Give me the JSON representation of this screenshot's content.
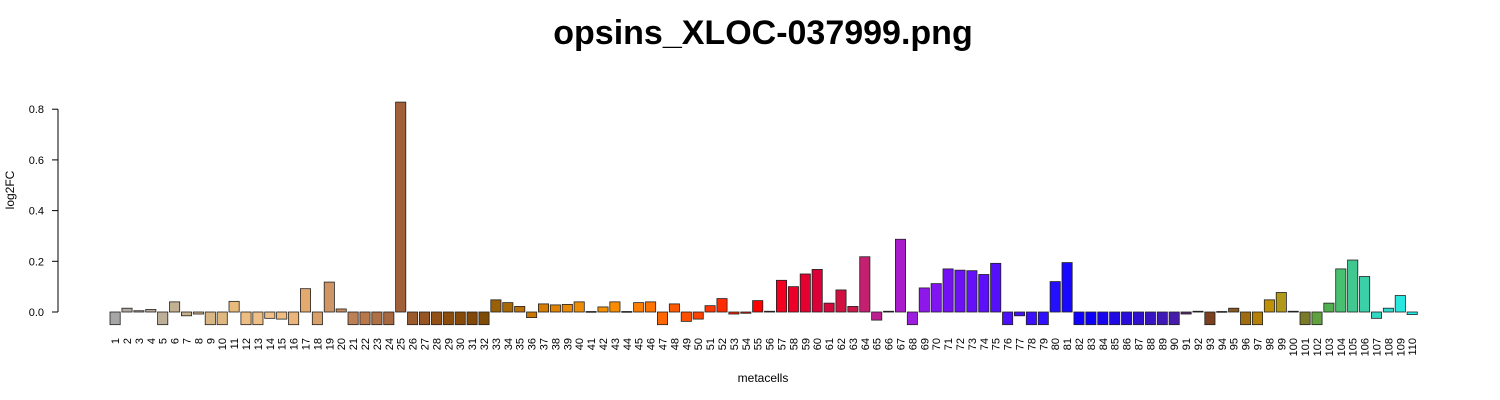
{
  "chart_data": {
    "type": "bar",
    "title": "opsins_XLOC-037999.png",
    "xlabel": "metacells",
    "ylabel": "log2FC",
    "ylim": [
      -0.05,
      0.83
    ],
    "yticks": [
      0.0,
      0.2,
      0.4,
      0.6,
      0.8
    ],
    "ytick_labels": [
      "0.0",
      "0.2",
      "0.4",
      "0.6",
      "0.8"
    ],
    "grid": false,
    "categories": [
      "1",
      "2",
      "3",
      "4",
      "5",
      "6",
      "7",
      "8",
      "9",
      "10",
      "11",
      "12",
      "13",
      "14",
      "15",
      "16",
      "17",
      "18",
      "19",
      "20",
      "21",
      "22",
      "23",
      "24",
      "25",
      "26",
      "27",
      "28",
      "29",
      "30",
      "31",
      "32",
      "33",
      "34",
      "35",
      "36",
      "37",
      "38",
      "39",
      "40",
      "41",
      "42",
      "43",
      "44",
      "45",
      "46",
      "47",
      "48",
      "49",
      "50",
      "51",
      "52",
      "53",
      "54",
      "55",
      "56",
      "57",
      "58",
      "59",
      "60",
      "61",
      "62",
      "63",
      "64",
      "65",
      "66",
      "67",
      "68",
      "69",
      "70",
      "71",
      "72",
      "73",
      "74",
      "75",
      "76",
      "77",
      "78",
      "79",
      "80",
      "81",
      "82",
      "83",
      "84",
      "85",
      "86",
      "87",
      "88",
      "89",
      "90",
      "91",
      "92",
      "93",
      "94",
      "95",
      "96",
      "97",
      "98",
      "99",
      "100",
      "101",
      "102",
      "103",
      "104",
      "105",
      "106",
      "107",
      "108",
      "109",
      "110"
    ],
    "values": [
      -0.05,
      0.015,
      0.005,
      0.01,
      -0.05,
      0.04,
      -0.015,
      -0.008,
      -0.05,
      -0.05,
      0.042,
      -0.05,
      -0.05,
      -0.025,
      -0.028,
      -0.05,
      0.092,
      -0.05,
      0.118,
      0.012,
      -0.05,
      -0.05,
      -0.05,
      -0.05,
      0.828,
      -0.05,
      -0.05,
      -0.05,
      -0.05,
      -0.05,
      -0.05,
      -0.05,
      0.048,
      0.037,
      0.022,
      -0.022,
      0.032,
      0.028,
      0.03,
      0.04,
      0.002,
      0.02,
      0.04,
      0.002,
      0.037,
      0.04,
      -0.05,
      0.032,
      -0.037,
      -0.028,
      0.025,
      0.053,
      -0.008,
      -0.005,
      0.045,
      0.003,
      0.125,
      0.1,
      0.15,
      0.168,
      0.035,
      0.087,
      0.022,
      0.218,
      -0.032,
      0.003,
      0.287,
      -0.05,
      0.095,
      0.112,
      0.17,
      0.165,
      0.163,
      0.148,
      0.192,
      -0.05,
      -0.015,
      -0.05,
      -0.05,
      0.12,
      0.195,
      -0.05,
      -0.05,
      -0.05,
      -0.05,
      -0.05,
      -0.05,
      -0.05,
      -0.05,
      -0.05,
      -0.008,
      0.003,
      -0.05,
      0.002,
      0.015,
      -0.05,
      -0.05,
      0.048,
      0.077,
      0.003,
      -0.05,
      -0.05,
      0.035,
      0.17,
      0.205,
      0.14,
      -0.025,
      0.015,
      0.065,
      -0.01
    ],
    "colors": [
      "#a6a6a6",
      "#b0aaa0",
      "#b3ab9e",
      "#b8ac9a",
      "#bcae97",
      "#c2b092",
      "#c8b28d",
      "#d0b488",
      "#d8b683",
      "#e0b77f",
      "#e8ba7c",
      "#ecbc80",
      "#efbf86",
      "#f0c08a",
      "#efbd84",
      "#eab47a",
      "#e3aa70",
      "#daa06a",
      "#d09565",
      "#c68a5e",
      "#bd8055",
      "#b8784c",
      "#b07045",
      "#a8683f",
      "#a0603a",
      "#9a5a2c",
      "#965522",
      "#925015",
      "#8c4c0b",
      "#874908",
      "#824808",
      "#7f4c08",
      "#9a6007",
      "#a86806",
      "#b87006",
      "#c87606",
      "#d57c06",
      "#e08206",
      "#e88806",
      "#ee8c05",
      "#f49004",
      "#f78f03",
      "#fa8c02",
      "#fc8600",
      "#fe7e00",
      "#ff7400",
      "#ff6600",
      "#ff5a00",
      "#ff4e00",
      "#ff4200",
      "#ff3600",
      "#ff2a00",
      "#ff1e00",
      "#ff1000",
      "#ff0000",
      "#fb0010",
      "#f40020",
      "#ec0028",
      "#e40030",
      "#dc0038",
      "#d4083c",
      "#d0103f",
      "#cc1848",
      "#c42070",
      "#bc2090",
      "#b41ca8",
      "#a81ccc",
      "#9c1ce0",
      "#8e18ea",
      "#8014f2",
      "#7410f4",
      "#6c10f6",
      "#6410f8",
      "#5c10fa",
      "#5410fb",
      "#4c10fc",
      "#4410fd",
      "#3c10fe",
      "#3010ff",
      "#2410ff",
      "#1808ff",
      "#1000ff",
      "#0c00fa",
      "#1804ee",
      "#2008e4",
      "#280cda",
      "#3010d0",
      "#3814c4",
      "#4018b8",
      "#481caa",
      "#5a2870",
      "#6a3840",
      "#7a4020",
      "#7a4a2a",
      "#8a5a20",
      "#a06c10",
      "#b48008",
      "#c09008",
      "#b09818",
      "#a09a28",
      "#7a7a28",
      "#60a040",
      "#50b050",
      "#48c070",
      "#40c890",
      "#3ad0a8",
      "#34d8c0",
      "#30dcd0",
      "#28e6e0",
      "#20f0f0"
    ]
  }
}
